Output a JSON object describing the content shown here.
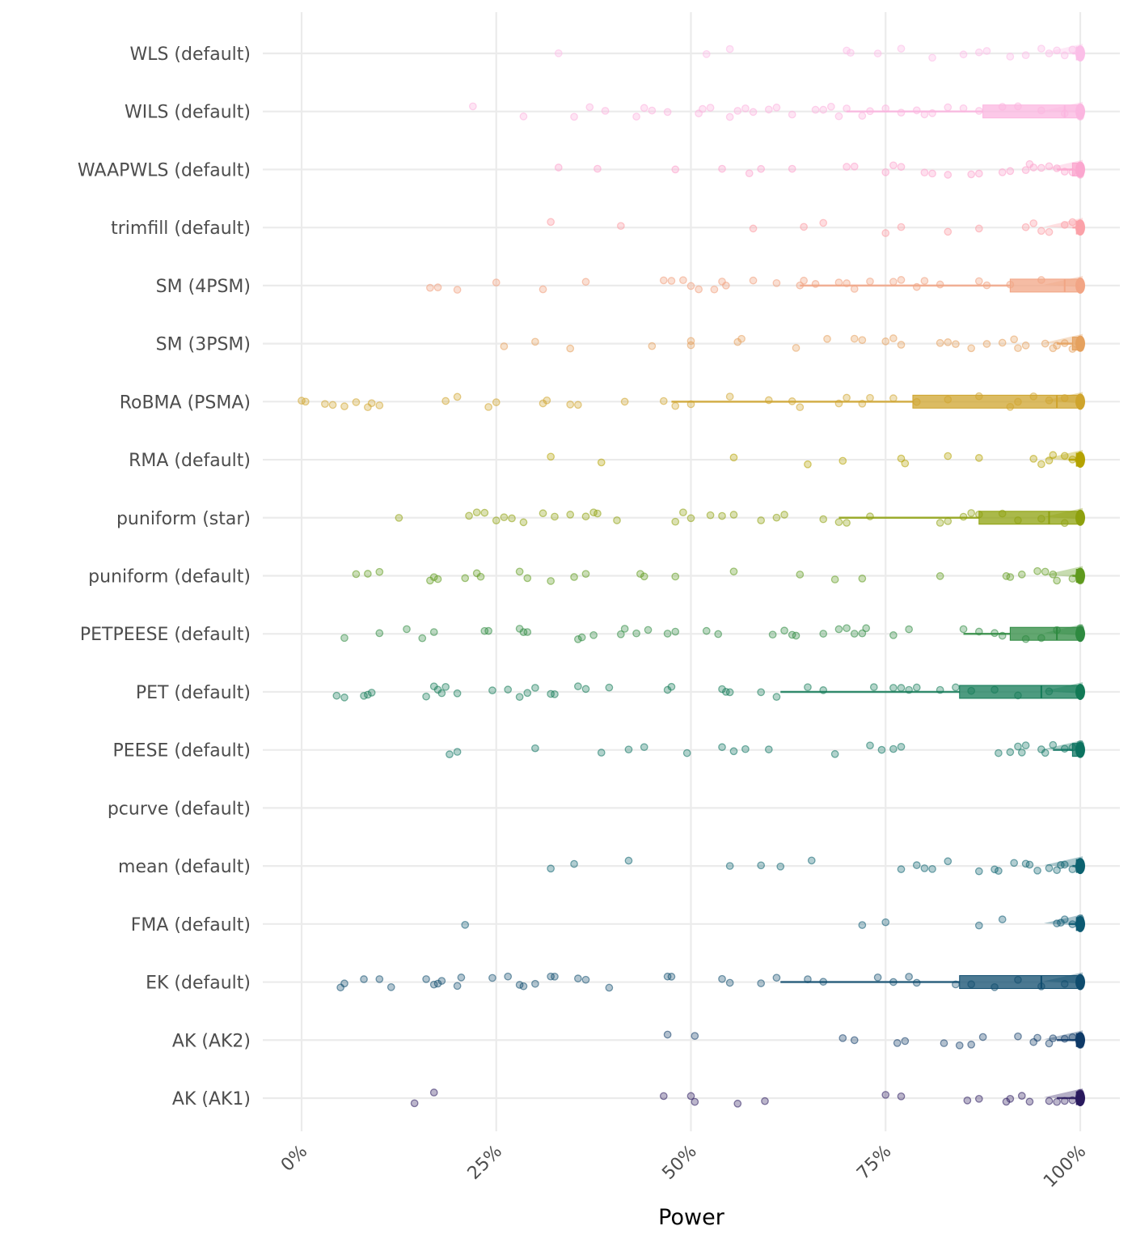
{
  "chart_data": {
    "type": "scatter",
    "subtype": "jittered strip plot with boxplots",
    "title": "",
    "xlabel": "Power",
    "ylabel": "",
    "xlim": [
      0,
      1
    ],
    "x_ticks": [
      0,
      0.25,
      0.5,
      0.75,
      1.0
    ],
    "x_tick_labels": [
      "0%",
      "25%",
      "50%",
      "75%",
      "100%"
    ],
    "grid": true,
    "legend": "none",
    "categories": [
      "WLS (default)",
      "WILS (default)",
      "WAAPWLS (default)",
      "trimfill (default)",
      "SM (4PSM)",
      "SM (3PSM)",
      "RoBMA (PSMA)",
      "RMA (default)",
      "puniform (star)",
      "puniform (default)",
      "PETPEESE (default)",
      "PET (default)",
      "PEESE (default)",
      "pcurve (default)",
      "mean (default)",
      "FMA (default)",
      "EK (default)",
      "AK (AK2)",
      "AK (AK1)"
    ],
    "series": [
      {
        "name": "WLS (default)",
        "color": "#fbbfe8",
        "box": {
          "lower": 0.995,
          "median": 1.0,
          "upper": 1.0,
          "whisker_low": 0.99
        },
        "values": [
          0.33,
          0.52,
          0.55,
          0.7,
          0.705,
          0.74,
          0.77,
          0.81,
          0.85,
          0.87,
          0.88,
          0.91,
          0.93,
          0.95,
          0.96,
          0.97,
          0.98,
          0.99,
          1.0,
          1.0,
          1.0
        ]
      },
      {
        "name": "WILS (default)",
        "color": "#fbb6e0",
        "box": {
          "lower": 0.875,
          "median": 0.98,
          "upper": 1.0,
          "whisker_low": 0.7
        },
        "values": [
          0.22,
          0.285,
          0.35,
          0.37,
          0.39,
          0.43,
          0.44,
          0.45,
          0.47,
          0.51,
          0.515,
          0.525,
          0.55,
          0.56,
          0.57,
          0.58,
          0.6,
          0.61,
          0.63,
          0.66,
          0.67,
          0.68,
          0.69,
          0.7,
          0.72,
          0.73,
          0.75,
          0.77,
          0.79,
          0.8,
          0.81,
          0.83,
          0.85,
          0.87,
          0.9,
          0.92,
          0.95,
          0.98,
          1.0,
          1.0
        ]
      },
      {
        "name": "WAAPWLS (default)",
        "color": "#fba7cf",
        "box": {
          "lower": 0.99,
          "median": 1.0,
          "upper": 1.0,
          "whisker_low": 0.97
        },
        "values": [
          0.33,
          0.38,
          0.48,
          0.54,
          0.575,
          0.59,
          0.63,
          0.7,
          0.71,
          0.75,
          0.76,
          0.77,
          0.8,
          0.81,
          0.83,
          0.86,
          0.87,
          0.9,
          0.91,
          0.93,
          0.935,
          0.94,
          0.95,
          0.96,
          0.97,
          0.98,
          0.99,
          1.0,
          1.0
        ]
      },
      {
        "name": "trimfill (default)",
        "color": "#fba2a9",
        "box": {
          "lower": 0.995,
          "median": 1.0,
          "upper": 1.0,
          "whisker_low": 0.99
        },
        "values": [
          0.32,
          0.41,
          0.58,
          0.645,
          0.67,
          0.75,
          0.77,
          0.83,
          0.87,
          0.93,
          0.94,
          0.95,
          0.96,
          0.98,
          0.99,
          1.0,
          1.0
        ]
      },
      {
        "name": "SM (4PSM)",
        "color": "#f2a585",
        "box": {
          "lower": 0.91,
          "median": 0.98,
          "upper": 1.0,
          "whisker_low": 0.64
        },
        "values": [
          0.165,
          0.175,
          0.2,
          0.25,
          0.31,
          0.365,
          0.465,
          0.475,
          0.49,
          0.5,
          0.51,
          0.53,
          0.54,
          0.545,
          0.58,
          0.61,
          0.64,
          0.645,
          0.66,
          0.69,
          0.7,
          0.71,
          0.73,
          0.76,
          0.77,
          0.79,
          0.8,
          0.82,
          0.87,
          0.88,
          0.91,
          0.95,
          1.0,
          1.0
        ]
      },
      {
        "name": "SM (3PSM)",
        "color": "#e5a15e",
        "box": {
          "lower": 0.99,
          "median": 1.0,
          "upper": 1.0,
          "whisker_low": 0.97
        },
        "values": [
          0.26,
          0.3,
          0.345,
          0.45,
          0.5,
          0.5,
          0.56,
          0.565,
          0.635,
          0.675,
          0.71,
          0.72,
          0.75,
          0.76,
          0.77,
          0.82,
          0.83,
          0.84,
          0.86,
          0.88,
          0.9,
          0.915,
          0.92,
          0.93,
          0.955,
          0.965,
          0.97,
          0.98,
          0.99,
          1.0
        ]
      },
      {
        "name": "RoBMA (PSMA)",
        "color": "#cfa42d",
        "box": {
          "lower": 0.785,
          "median": 0.97,
          "upper": 1.0,
          "whisker_low": 0.475
        },
        "values": [
          0.0,
          0.005,
          0.03,
          0.04,
          0.055,
          0.07,
          0.085,
          0.09,
          0.1,
          0.185,
          0.2,
          0.24,
          0.25,
          0.31,
          0.315,
          0.345,
          0.355,
          0.415,
          0.465,
          0.48,
          0.5,
          0.55,
          0.6,
          0.63,
          0.64,
          0.69,
          0.7,
          0.72,
          0.73,
          0.76,
          0.79,
          0.83,
          0.87,
          0.91,
          0.92,
          0.94,
          0.96,
          0.98,
          1.0
        ]
      },
      {
        "name": "RMA (default)",
        "color": "#b5a300",
        "box": {
          "lower": 0.995,
          "median": 1.0,
          "upper": 1.0,
          "whisker_low": 0.985
        },
        "values": [
          0.32,
          0.385,
          0.555,
          0.65,
          0.695,
          0.77,
          0.775,
          0.83,
          0.87,
          0.94,
          0.95,
          0.96,
          0.965,
          0.98,
          0.99,
          1.0,
          1.0
        ]
      },
      {
        "name": "puniform (star)",
        "color": "#8ea10e",
        "box": {
          "lower": 0.87,
          "median": 0.96,
          "upper": 1.0,
          "whisker_low": 0.69
        },
        "values": [
          0.125,
          0.215,
          0.225,
          0.235,
          0.25,
          0.26,
          0.27,
          0.285,
          0.31,
          0.325,
          0.345,
          0.365,
          0.375,
          0.38,
          0.405,
          0.48,
          0.49,
          0.5,
          0.525,
          0.54,
          0.555,
          0.59,
          0.61,
          0.62,
          0.67,
          0.69,
          0.7,
          0.73,
          0.82,
          0.83,
          0.85,
          0.86,
          0.87,
          0.9,
          0.92,
          0.95,
          0.98,
          1.0
        ]
      },
      {
        "name": "puniform (default)",
        "color": "#5f9a1e",
        "box": {
          "lower": 0.995,
          "median": 1.0,
          "upper": 1.0,
          "whisker_low": 0.99
        },
        "values": [
          0.07,
          0.085,
          0.1,
          0.165,
          0.17,
          0.175,
          0.21,
          0.225,
          0.23,
          0.28,
          0.29,
          0.32,
          0.35,
          0.365,
          0.435,
          0.44,
          0.48,
          0.555,
          0.64,
          0.685,
          0.72,
          0.82,
          0.905,
          0.91,
          0.925,
          0.945,
          0.955,
          0.965,
          0.97,
          0.99,
          1.0,
          1.0
        ]
      },
      {
        "name": "PETPEESE (default)",
        "color": "#2e8a40",
        "box": {
          "lower": 0.91,
          "median": 0.97,
          "upper": 1.0,
          "whisker_low": 0.85
        },
        "values": [
          0.055,
          0.1,
          0.135,
          0.155,
          0.17,
          0.235,
          0.24,
          0.28,
          0.285,
          0.29,
          0.355,
          0.36,
          0.375,
          0.41,
          0.415,
          0.43,
          0.445,
          0.47,
          0.48,
          0.52,
          0.535,
          0.605,
          0.62,
          0.63,
          0.635,
          0.67,
          0.69,
          0.7,
          0.71,
          0.72,
          0.725,
          0.76,
          0.78,
          0.85,
          0.87,
          0.89,
          0.9,
          0.93,
          0.95,
          0.97,
          1.0
        ]
      },
      {
        "name": "PET (default)",
        "color": "#127a56",
        "box": {
          "lower": 0.845,
          "median": 0.95,
          "upper": 1.0,
          "whisker_low": 0.615
        },
        "values": [
          0.045,
          0.055,
          0.08,
          0.085,
          0.09,
          0.16,
          0.17,
          0.175,
          0.18,
          0.185,
          0.2,
          0.245,
          0.265,
          0.28,
          0.29,
          0.3,
          0.32,
          0.325,
          0.355,
          0.365,
          0.395,
          0.47,
          0.475,
          0.54,
          0.545,
          0.55,
          0.59,
          0.61,
          0.65,
          0.67,
          0.735,
          0.76,
          0.77,
          0.78,
          0.79,
          0.82,
          0.84,
          0.86,
          0.89,
          0.92,
          0.96,
          1.0
        ]
      },
      {
        "name": "PEESE (default)",
        "color": "#0d7360",
        "box": {
          "lower": 0.99,
          "median": 1.0,
          "upper": 1.0,
          "whisker_low": 0.965
        },
        "values": [
          0.19,
          0.2,
          0.3,
          0.385,
          0.42,
          0.44,
          0.495,
          0.54,
          0.555,
          0.57,
          0.6,
          0.685,
          0.73,
          0.745,
          0.76,
          0.77,
          0.895,
          0.91,
          0.92,
          0.925,
          0.93,
          0.95,
          0.955,
          0.965,
          0.98,
          0.99,
          1.0,
          1.0
        ]
      },
      {
        "name": "pcurve (default)",
        "color": "#0f6a6a",
        "box": null,
        "values": []
      },
      {
        "name": "mean (default)",
        "color": "#0d6270",
        "box": {
          "lower": 0.995,
          "median": 1.0,
          "upper": 1.0,
          "whisker_low": 0.99
        },
        "values": [
          0.32,
          0.35,
          0.42,
          0.55,
          0.59,
          0.615,
          0.655,
          0.77,
          0.79,
          0.8,
          0.81,
          0.83,
          0.87,
          0.89,
          0.895,
          0.915,
          0.93,
          0.935,
          0.945,
          0.96,
          0.97,
          0.975,
          0.98,
          0.99,
          1.0,
          1.0
        ]
      },
      {
        "name": "FMA (default)",
        "color": "#0c5a72",
        "box": {
          "lower": 0.995,
          "median": 1.0,
          "upper": 1.0,
          "whisker_low": 0.985
        },
        "values": [
          0.21,
          0.72,
          0.75,
          0.87,
          0.9,
          0.97,
          0.975,
          0.98,
          0.99,
          1.0,
          1.0
        ]
      },
      {
        "name": "EK (default)",
        "color": "#0f4c6e",
        "box": {
          "lower": 0.845,
          "median": 0.95,
          "upper": 1.0,
          "whisker_low": 0.615
        },
        "values": [
          0.05,
          0.055,
          0.08,
          0.1,
          0.115,
          0.16,
          0.17,
          0.175,
          0.18,
          0.2,
          0.205,
          0.245,
          0.265,
          0.28,
          0.285,
          0.3,
          0.32,
          0.325,
          0.355,
          0.365,
          0.395,
          0.47,
          0.475,
          0.54,
          0.55,
          0.59,
          0.61,
          0.65,
          0.67,
          0.74,
          0.76,
          0.78,
          0.79,
          0.84,
          0.86,
          0.89,
          0.92,
          0.95,
          0.98,
          1.0
        ]
      },
      {
        "name": "AK (AK2)",
        "color": "#0f3a68",
        "box": {
          "lower": 0.995,
          "median": 1.0,
          "upper": 1.0,
          "whisker_low": 0.97
        },
        "values": [
          0.47,
          0.505,
          0.695,
          0.71,
          0.765,
          0.775,
          0.825,
          0.845,
          0.86,
          0.875,
          0.92,
          0.94,
          0.945,
          0.96,
          0.965,
          0.98,
          0.99,
          1.0,
          1.0
        ]
      },
      {
        "name": "AK (AK1)",
        "color": "#2a1a5e",
        "box": {
          "lower": 0.995,
          "median": 1.0,
          "upper": 1.0,
          "whisker_low": 0.97
        },
        "values": [
          0.145,
          0.17,
          0.465,
          0.5,
          0.505,
          0.56,
          0.595,
          0.75,
          0.77,
          0.855,
          0.87,
          0.905,
          0.91,
          0.925,
          0.935,
          0.96,
          0.97,
          0.98,
          0.99,
          1.0,
          1.0
        ]
      }
    ]
  }
}
